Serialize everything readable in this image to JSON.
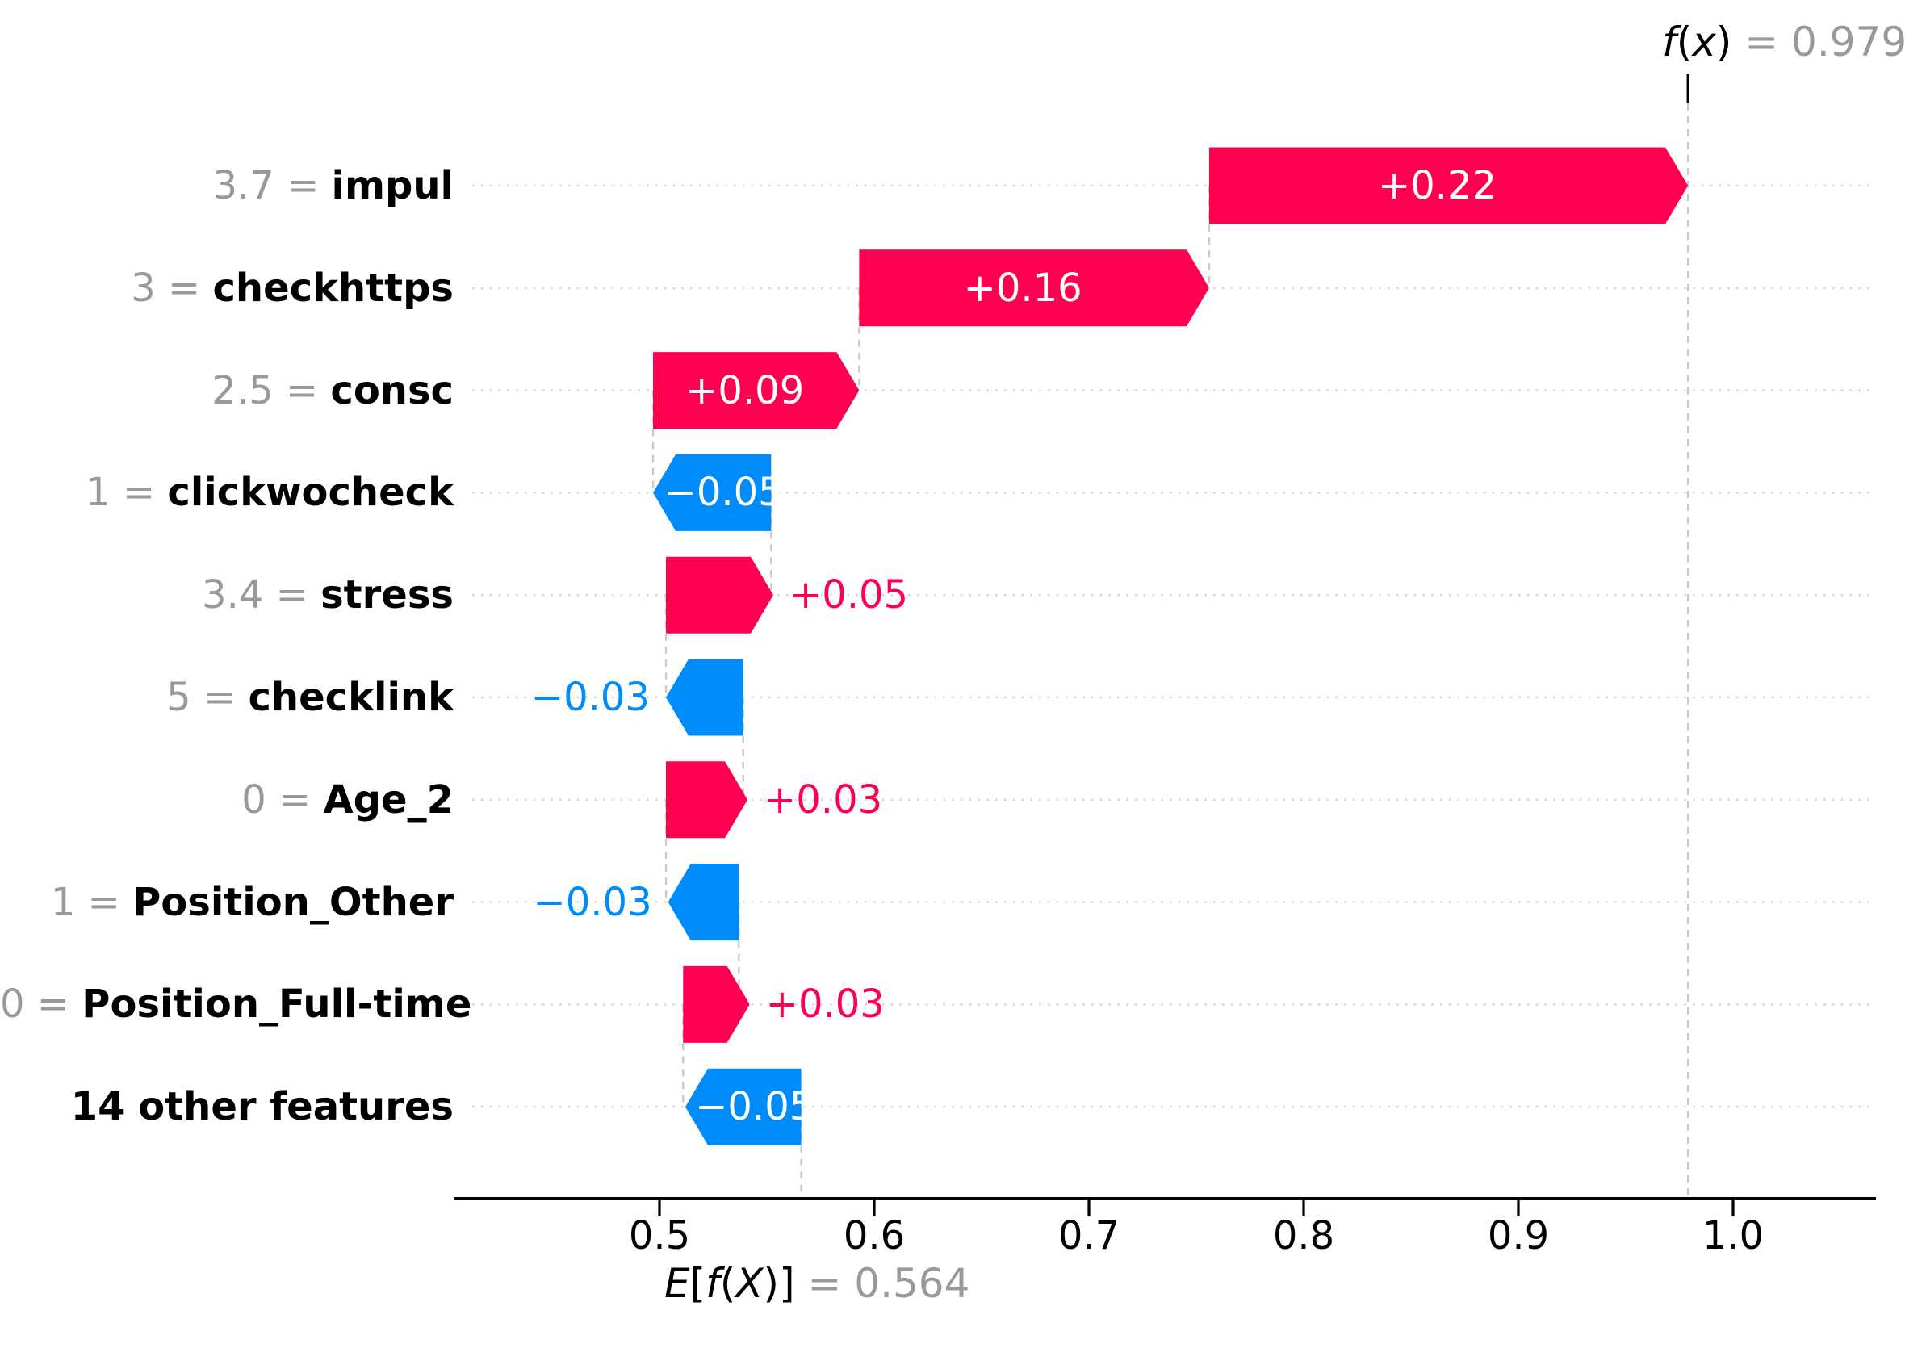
{
  "fx": {
    "label": "f(x)",
    "equals": "=",
    "value": "0.979"
  },
  "efx": {
    "label": "E[f(X)]",
    "equals": "=",
    "value": "0.564"
  },
  "colors": {
    "positive": "#ff0051",
    "negative": "#008bfb",
    "inside_label": "#ffffff",
    "muted_text": "#999999",
    "feature_text": "#000000",
    "gridline": "#d9d9d9",
    "connector": "#c9c9c9",
    "axis": "#000000"
  },
  "x_axis": {
    "tick_labels": [
      "0.5",
      "0.6",
      "0.7",
      "0.8",
      "0.9",
      "1.0"
    ],
    "tick_values": [
      0.5,
      0.6,
      0.7,
      0.8,
      0.9,
      1.0
    ]
  },
  "chart_data": {
    "type": "bar",
    "variant": "shap-waterfall",
    "title": "f(x) = 0.979",
    "xlabel": "E[f(X)] = 0.564",
    "final_value": 0.979,
    "base_value": 0.564,
    "xlim": [
      0.404,
      1.066
    ],
    "grid": "dotted-rows",
    "features": [
      {
        "value": "3.7",
        "equals": "=",
        "name": "impul",
        "contribution_label": "+0.22",
        "contribution": 0.22,
        "direction": "positive",
        "start": 0.756,
        "end": 0.979,
        "label_position": "inside"
      },
      {
        "value": "3",
        "equals": "=",
        "name": "checkhttps",
        "contribution_label": "+0.16",
        "contribution": 0.16,
        "direction": "positive",
        "start": 0.593,
        "end": 0.756,
        "label_position": "inside"
      },
      {
        "value": "2.5",
        "equals": "=",
        "name": "consc",
        "contribution_label": "+0.09",
        "contribution": 0.09,
        "direction": "positive",
        "start": 0.497,
        "end": 0.593,
        "label_position": "inside"
      },
      {
        "value": "1",
        "equals": "=",
        "name": "clickwocheck",
        "contribution_label": "−0.05",
        "contribution": -0.05,
        "direction": "negative",
        "start": 0.497,
        "end": 0.552,
        "label_position": "inside"
      },
      {
        "value": "3.4",
        "equals": "=",
        "name": "stress",
        "contribution_label": "+0.05",
        "contribution": 0.05,
        "direction": "positive",
        "start": 0.503,
        "end": 0.553,
        "label_position": "outside"
      },
      {
        "value": "5",
        "equals": "=",
        "name": "checklink",
        "contribution_label": "−0.03",
        "contribution": -0.03,
        "direction": "negative",
        "start": 0.503,
        "end": 0.539,
        "label_position": "outside"
      },
      {
        "value": "0",
        "equals": "=",
        "name": "Age_2",
        "contribution_label": "+0.03",
        "contribution": 0.03,
        "direction": "positive",
        "start": 0.503,
        "end": 0.541,
        "label_position": "outside"
      },
      {
        "value": "1",
        "equals": "=",
        "name": "Position_Other",
        "contribution_label": "−0.03",
        "contribution": -0.03,
        "direction": "negative",
        "start": 0.504,
        "end": 0.537,
        "label_position": "outside"
      },
      {
        "value": "0",
        "equals": "=",
        "name": "Position_Full-time",
        "contribution_label": "+0.03",
        "contribution": 0.03,
        "direction": "positive",
        "start": 0.511,
        "end": 0.542,
        "label_position": "outside"
      },
      {
        "value": "",
        "equals": "",
        "name": "14 other features",
        "contribution_label": "−0.05",
        "contribution": -0.05,
        "direction": "negative",
        "start": 0.512,
        "end": 0.566,
        "label_position": "inside"
      }
    ]
  }
}
